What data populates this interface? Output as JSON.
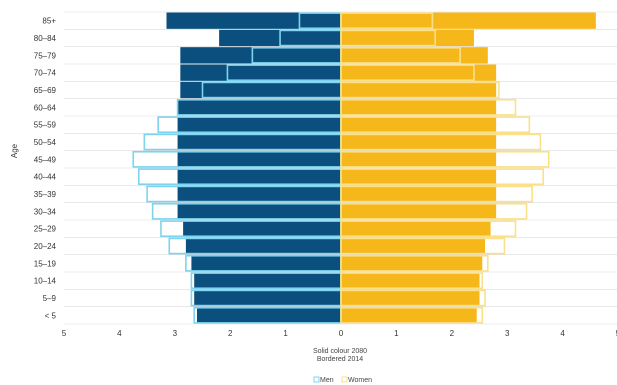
{
  "chart_data": {
    "type": "bar",
    "orientation": "horizontal",
    "style": "population-pyramid",
    "ylabel": "Age",
    "xlabel": "",
    "xlim": [
      -5,
      5
    ],
    "x_ticks": [
      -5,
      -4,
      -3,
      -2,
      -1,
      0,
      1,
      2,
      3,
      4,
      5
    ],
    "x_tick_labels": [
      "5",
      "4",
      "3",
      "2",
      "1",
      "0",
      "1",
      "2",
      "3",
      "4",
      "5"
    ],
    "grid": "horizontal",
    "categories": [
      "< 5",
      "5–9",
      "10–14",
      "15–19",
      "20–24",
      "25–29",
      "30–34",
      "35–39",
      "40–44",
      "45–49",
      "50–54",
      "55–59",
      "60–64",
      "65–69",
      "70–74",
      "75–79",
      "80–84",
      "85+"
    ],
    "series": [
      {
        "name": "Men",
        "year": "2080",
        "style": "solid",
        "side": "left",
        "color": "#0a4f7d",
        "values": [
          2.6,
          2.65,
          2.65,
          2.7,
          2.8,
          2.85,
          2.95,
          2.95,
          2.95,
          2.95,
          2.95,
          2.95,
          2.95,
          2.9,
          2.9,
          2.9,
          2.2,
          3.15
        ]
      },
      {
        "name": "Women",
        "year": "2080",
        "style": "solid",
        "side": "right",
        "color": "#f6b71a",
        "values": [
          2.45,
          2.5,
          2.5,
          2.55,
          2.6,
          2.7,
          2.8,
          2.8,
          2.8,
          2.8,
          2.8,
          2.8,
          2.8,
          2.8,
          2.8,
          2.65,
          2.4,
          4.6
        ]
      },
      {
        "name": "Men",
        "year": "2014",
        "style": "bordered",
        "side": "left",
        "color": "#7fd3ee",
        "values": [
          2.65,
          2.7,
          2.7,
          2.8,
          3.1,
          3.25,
          3.4,
          3.5,
          3.65,
          3.75,
          3.55,
          3.3,
          2.95,
          2.5,
          2.05,
          1.6,
          1.1,
          0.75
        ]
      },
      {
        "name": "Women",
        "year": "2014",
        "style": "bordered",
        "side": "right",
        "color": "#fbe08a",
        "values": [
          2.55,
          2.6,
          2.55,
          2.65,
          2.95,
          3.15,
          3.35,
          3.45,
          3.65,
          3.75,
          3.6,
          3.4,
          3.15,
          2.85,
          2.4,
          2.15,
          1.7,
          1.65
        ]
      }
    ],
    "note_lines": [
      "Solid colour 2080",
      "Bordered 2014"
    ],
    "legend": {
      "position": "bottom-center",
      "items": [
        {
          "label": "Men",
          "color": "#7fd3ee"
        },
        {
          "label": "Women",
          "color": "#fbe08a"
        }
      ]
    },
    "colors": {
      "men_solid": "#0a4f7d",
      "women_solid": "#f6b71a",
      "men_border": "#7fd3ee",
      "women_border": "#fbe08a",
      "divider": "#ffffff",
      "grid": "#d9d9d9"
    }
  }
}
